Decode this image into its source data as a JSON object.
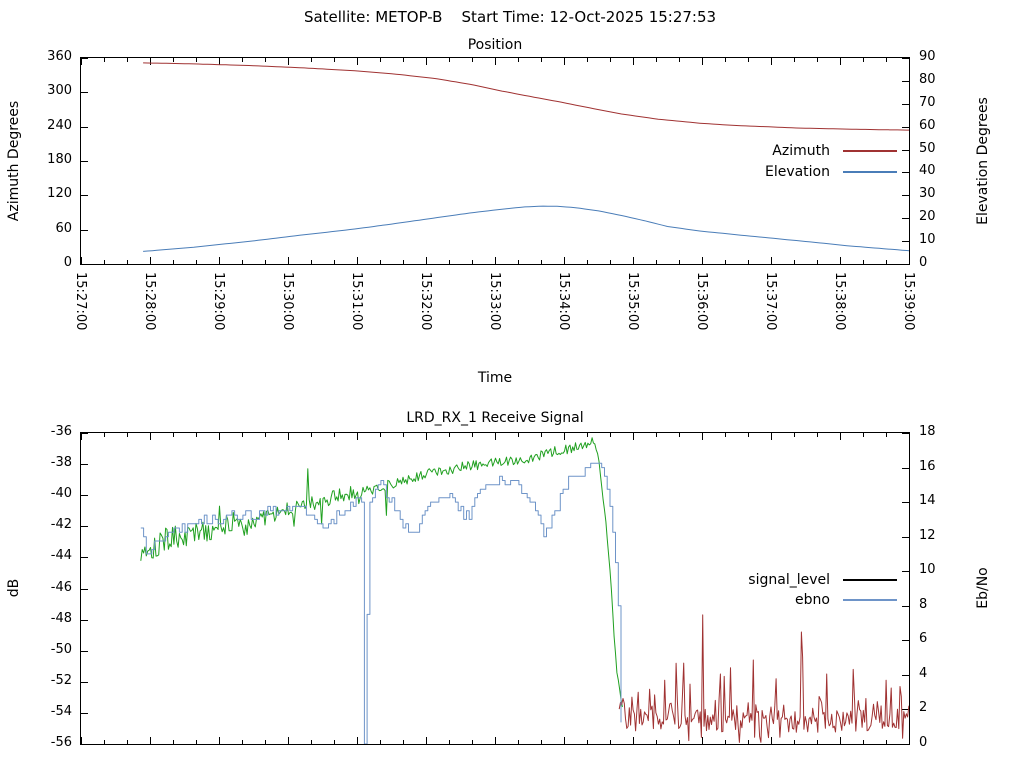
{
  "header": {
    "title": "Satellite: METOP-B    Start Time: 12-Oct-2025 15:27:53"
  },
  "chart_data": [
    {
      "id": "position",
      "type": "line",
      "title": "Position",
      "x_label": "Time",
      "x_axis": {
        "majors": 13,
        "minor_per_major": 3,
        "range_seconds": [
          0,
          720
        ],
        "tick_labels": [
          "15:27:00",
          "15:28:00",
          "15:29:00",
          "15:30:00",
          "15:31:00",
          "15:32:00",
          "15:33:00",
          "15:34:00",
          "15:35:00",
          "15:36:00",
          "15:37:00",
          "15:38:00",
          "15:39:00"
        ]
      },
      "y_left": {
        "label": "Azimuth Degrees",
        "min": 0,
        "max": 360,
        "tick_labels": [
          "360",
          "300",
          "240",
          "180",
          "120",
          "60",
          "0"
        ]
      },
      "y_right": {
        "label": "Elevation Degrees",
        "min": 0,
        "max": 90,
        "tick_labels": [
          "90",
          "80",
          "70",
          "60",
          "50",
          "40",
          "30",
          "20",
          "10",
          "0"
        ]
      },
      "legend": [
        {
          "label": "Azimuth",
          "color": "#a03232"
        },
        {
          "label": "Elevation",
          "color": "#4a7db8"
        }
      ],
      "series": [
        {
          "name": "Azimuth",
          "axis": "left",
          "color": "#a03232",
          "mode": "line",
          "points": [
            [
              54,
              351.5
            ],
            [
              100,
              349.6
            ],
            [
              150,
              346.6
            ],
            [
              191,
              343
            ],
            [
              240,
              337.5
            ],
            [
              278,
              331
            ],
            [
              310,
              323.5
            ],
            [
              340,
              313.5
            ],
            [
              364,
              303
            ],
            [
              390,
              293
            ],
            [
              417,
              283
            ],
            [
              443,
              272.5
            ],
            [
              469,
              262.5
            ],
            [
              500,
              253.5
            ],
            [
              538,
              246
            ],
            [
              570,
              242
            ],
            [
              625,
              237.5
            ],
            [
              670,
              235.5
            ],
            [
              720,
              234
            ]
          ]
        },
        {
          "name": "Elevation",
          "axis": "right",
          "color": "#4a7db8",
          "mode": "line",
          "points": [
            [
              54,
              5.5
            ],
            [
              100,
              7.4
            ],
            [
              150,
              10.1
            ],
            [
              191,
              12.6
            ],
            [
              240,
              15.4
            ],
            [
              278,
              18
            ],
            [
              310,
              20.3
            ],
            [
              340,
              22.4
            ],
            [
              364,
              23.8
            ],
            [
              385,
              24.9
            ],
            [
              400,
              25.3
            ],
            [
              415,
              25.2
            ],
            [
              430,
              24.6
            ],
            [
              450,
              23.2
            ],
            [
              470,
              21.2
            ],
            [
              490,
              18.9
            ],
            [
              510,
              16.4
            ],
            [
              538,
              14.4
            ],
            [
              582,
              12.2
            ],
            [
              625,
              10.1
            ],
            [
              668,
              7.9
            ],
            [
              720,
              5.8
            ]
          ]
        }
      ]
    },
    {
      "id": "receive_signal",
      "type": "line",
      "title": "LRD_RX_1 Receive Signal",
      "x_label": "",
      "x_axis": {
        "majors": 13,
        "minor_per_major": 3,
        "range_seconds": [
          0,
          720
        ],
        "tick_labels": []
      },
      "y_left": {
        "label": "dB",
        "min": -56,
        "max": -36,
        "tick_labels": [
          "-36",
          "-38",
          "-40",
          "-42",
          "-44",
          "-46",
          "-48",
          "-50",
          "-52",
          "-54",
          "-56"
        ]
      },
      "y_right": {
        "label": "Eb/No",
        "min": 0,
        "max": 18,
        "tick_labels": [
          "18",
          "16",
          "14",
          "12",
          "10",
          "8",
          "6",
          "4",
          "2",
          "0"
        ]
      },
      "legend": [
        {
          "label": "signal_level",
          "color": "#000000"
        },
        {
          "label": "ebno",
          "color": "#6e94c8"
        }
      ],
      "series": [
        {
          "name": "signal_level",
          "axis": "left",
          "color": "#20a020",
          "mode": "noisy",
          "noise": {
            "seed": 101,
            "step": 1.2,
            "amp": 0.32,
            "early_until": 150,
            "early_amp": 0.85,
            "mid_until": 260,
            "mid_amp": 0.5,
            "calm_after": 447,
            "calm_amp": 0.12,
            "spike_chance": 0.05,
            "spike_mag": 1.5
          },
          "spikes": [
            [
              121,
              -40.7
            ],
            [
              197,
              -38.3
            ],
            [
              266,
              -41.3
            ],
            [
              444,
              -36.3
            ]
          ],
          "points": [
            [
              52,
              -43.6
            ],
            [
              70,
              -43
            ],
            [
              104,
              -42.3
            ],
            [
              148,
              -41.7
            ],
            [
              191,
              -40.7
            ],
            [
              234,
              -39.9
            ],
            [
              270,
              -39.3
            ],
            [
              300,
              -38.6
            ],
            [
              330,
              -38.2
            ],
            [
              360,
              -37.9
            ],
            [
              390,
              -37.6
            ],
            [
              417,
              -37.1
            ],
            [
              440,
              -36.8
            ],
            [
              447,
              -36.7
            ],
            [
              450,
              -37.5
            ],
            [
              452,
              -38.8
            ],
            [
              454,
              -40.2
            ],
            [
              456,
              -41.5
            ],
            [
              458,
              -43
            ],
            [
              460,
              -44.8
            ],
            [
              462,
              -47
            ],
            [
              464,
              -49.5
            ],
            [
              466,
              -51.3
            ],
            [
              468,
              -52.4
            ],
            [
              471,
              -53.6
            ]
          ]
        },
        {
          "name": "noise_floor",
          "axis": "left",
          "color": "#a03232",
          "mode": "floor",
          "noise": {
            "seed": 202,
            "step": 1.1,
            "band": 1.5
          },
          "spikes": [
            [
              508,
              -51.9
            ],
            [
              524,
              -50.8
            ],
            [
              540.2,
              -47.7
            ],
            [
              556,
              -51.5
            ],
            [
              564.5,
              -51.1
            ],
            [
              585,
              -50.6
            ],
            [
              604,
              -51.8
            ],
            [
              626.3,
              -48.8
            ],
            [
              628,
              -50.4
            ],
            [
              648,
              -51.5
            ],
            [
              671,
              -51.2
            ],
            [
              700,
              -51.9
            ],
            [
              712,
              -52.3
            ]
          ],
          "points": [
            [
              468,
              -53.2
            ],
            [
              480,
              -54.5
            ],
            [
              720,
              -54.5
            ]
          ]
        },
        {
          "name": "ebno",
          "axis": "right",
          "color": "#6e94c8",
          "mode": "steps",
          "noise": {
            "seed": 303,
            "step": 2.4,
            "amp": 0.3,
            "quant": 0.25
          },
          "spikes": [],
          "points": [
            [
              52,
              12.3
            ],
            [
              58,
              10.9
            ],
            [
              66,
              11.8
            ],
            [
              80,
              12.3
            ],
            [
              104,
              12.9
            ],
            [
              130,
              13.1
            ],
            [
              150,
              13.3
            ],
            [
              175,
              13.5
            ],
            [
              191,
              13.6
            ],
            [
              205,
              12.9
            ],
            [
              212,
              12.4
            ],
            [
              226,
              13.4
            ],
            [
              238,
              14
            ],
            [
              245.5,
              14
            ],
            [
              246.3,
              0
            ],
            [
              248.3,
              0
            ],
            [
              249.2,
              13.6
            ],
            [
              256,
              14.7
            ],
            [
              263,
              15
            ],
            [
              268,
              14.2
            ],
            [
              276,
              13
            ],
            [
              284,
              12.5
            ],
            [
              292,
              12.4
            ],
            [
              302,
              13.9
            ],
            [
              312,
              14.3
            ],
            [
              322,
              14.4
            ],
            [
              330,
              13.6
            ],
            [
              336,
              13.1
            ],
            [
              344,
              14.3
            ],
            [
              352,
              14.9
            ],
            [
              364,
              15.2
            ],
            [
              377,
              15.1
            ],
            [
              386,
              14.6
            ],
            [
              395,
              13.7
            ],
            [
              402,
              12.1
            ],
            [
              408,
              12.6
            ],
            [
              415,
              14
            ],
            [
              424,
              15.2
            ],
            [
              433,
              15.7
            ],
            [
              442,
              15.9
            ],
            [
              448,
              16.1
            ],
            [
              452,
              16.2
            ],
            [
              455,
              15.6
            ],
            [
              458,
              14.6
            ],
            [
              460,
              13.8
            ],
            [
              462,
              12.5
            ],
            [
              464,
              11
            ],
            [
              466,
              9.5
            ],
            [
              467.5,
              7.5
            ],
            [
              468.5,
              4
            ],
            [
              469.5,
              1.5
            ],
            [
              470.2,
              0
            ]
          ]
        }
      ]
    }
  ]
}
